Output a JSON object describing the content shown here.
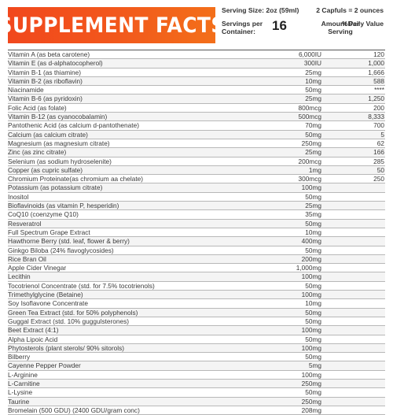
{
  "header": {
    "title": "SUPPLEMENT FACTS",
    "serving_size": "Serving Size: 2oz (59ml)",
    "capfuls": "2 Capfuls = 2 ounces",
    "servings_per_container_label": "Servings per Container:",
    "servings_per_container": "16",
    "amount_header": "Amount Per Serving",
    "dv_header": "%Daily Value"
  },
  "colors": {
    "title_bg": "#f2571c",
    "title_text": "#ffffff"
  },
  "facts": [
    {
      "name": "Vitamin A (as beta carotene)",
      "amount": "6,000IU",
      "dv": "120"
    },
    {
      "name": "Vitamin E (as d-alphatocopherol)",
      "amount": "300IU",
      "dv": "1,000"
    },
    {
      "name": "Vitamin B-1 (as thiamine)",
      "amount": "25mg",
      "dv": "1,666"
    },
    {
      "name": "Vitamin B-2 (as riboflavin)",
      "amount": "10mg",
      "dv": "588"
    },
    {
      "name": "Niacinamide",
      "amount": "50mg",
      "dv": "****"
    },
    {
      "name": "Vitamin B-6 (as pyridoxin)",
      "amount": "25mg",
      "dv": "1,250"
    },
    {
      "name": "Folic Acid (as folate)",
      "amount": "800mcg",
      "dv": "200"
    },
    {
      "name": "Vitamin B-12 (as cyanocobalamin)",
      "amount": "500mcg",
      "dv": "8,333"
    },
    {
      "name": "Pantothenic Acid (as calcium d-pantothenate)",
      "amount": "70mg",
      "dv": "700"
    },
    {
      "name": "Calcium (as calcium citrate)",
      "amount": "50mg",
      "dv": "5"
    },
    {
      "name": "Magnesium (as magnesium citrate)",
      "amount": "250mg",
      "dv": "62"
    },
    {
      "name": "Zinc (as zinc citrate)",
      "amount": "25mg",
      "dv": "166"
    },
    {
      "name": "Selenium (as sodium hydroselenite)",
      "amount": "200mcg",
      "dv": "285"
    },
    {
      "name": "Copper (as cupric sulfate)",
      "amount": "1mg",
      "dv": "50"
    },
    {
      "name": "Chromium Proteinate(as chromium aa chelate)",
      "amount": "300mcg",
      "dv": "250"
    },
    {
      "name": "Potassium (as potassium citrate)",
      "amount": "100mg",
      "dv": ""
    },
    {
      "name": "Inositol",
      "amount": "50mg",
      "dv": ""
    },
    {
      "name": "Bioflavinoids (as vitamin P, hesperidin)",
      "amount": "25mg",
      "dv": ""
    },
    {
      "name": "CoQ10 (coenzyme Q10)",
      "amount": "35mg",
      "dv": ""
    },
    {
      "name": "Resveratrol",
      "amount": "50mg",
      "dv": ""
    },
    {
      "name": "Full Spectrum Grape Extract",
      "amount": "10mg",
      "dv": ""
    },
    {
      "name": "Hawthorne Berry (std. leaf, flower & berry)",
      "amount": "400mg",
      "dv": ""
    },
    {
      "name": "Ginkgo Biloba (24% flavoglycosides)",
      "amount": "50mg",
      "dv": ""
    },
    {
      "name": "Rice Bran Oil",
      "amount": "200mg",
      "dv": ""
    },
    {
      "name": "Apple Cider Vinegar",
      "amount": "1,000mg",
      "dv": ""
    },
    {
      "name": "Lecithin",
      "amount": "100mg",
      "dv": ""
    },
    {
      "name": "Tocotrienol Concentrate (std. for 7.5% tocotrienols)",
      "amount": "50mg",
      "dv": ""
    },
    {
      "name": "Trimethylglycine (Betaine)",
      "amount": "100mg",
      "dv": ""
    },
    {
      "name": "Soy Isoflavone Concentrate",
      "amount": "10mg",
      "dv": ""
    },
    {
      "name": "Green Tea Extract (std. for 50% polyphenols)",
      "amount": "50mg",
      "dv": ""
    },
    {
      "name": "Guggal Extract (std. 10% guggulsterones)",
      "amount": "50mg",
      "dv": ""
    },
    {
      "name": "Beet Extract (4:1)",
      "amount": "100mg",
      "dv": ""
    },
    {
      "name": "Alpha Lipoic Acid",
      "amount": "50mg",
      "dv": ""
    },
    {
      "name": "Phytosterols (plant sterols/ 90% sitorols)",
      "amount": "100mg",
      "dv": ""
    },
    {
      "name": "Bilberry",
      "amount": "50mg",
      "dv": ""
    },
    {
      "name": "Cayenne Pepper Powder",
      "amount": "5mg",
      "dv": ""
    },
    {
      "name": "L-Arginine",
      "amount": "100mg",
      "dv": ""
    },
    {
      "name": "L-Carnitine",
      "amount": "250mg",
      "dv": ""
    },
    {
      "name": "L-Lysine",
      "amount": "50mg",
      "dv": ""
    },
    {
      "name": "Taurine",
      "amount": "250mg",
      "dv": ""
    },
    {
      "name": "Bromelain (500 GDU) (2400 GDU/gram conc)",
      "amount": "208mg",
      "dv": ""
    }
  ]
}
